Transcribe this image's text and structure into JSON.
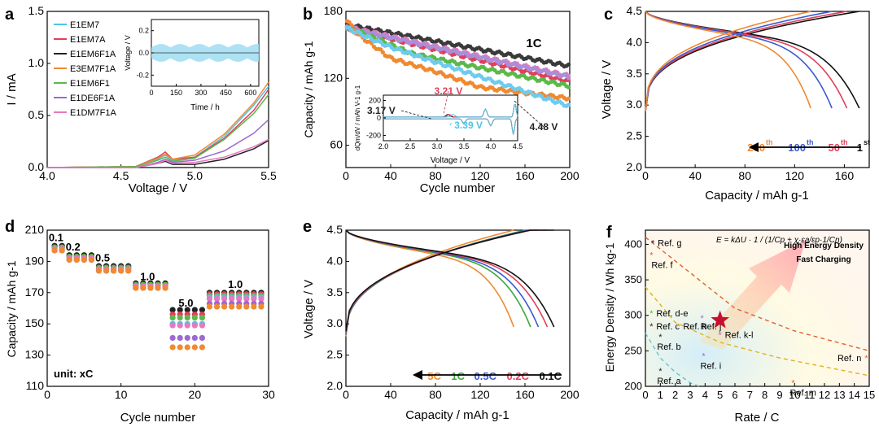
{
  "chart_data": [
    {
      "id": "a",
      "panel_label": "a",
      "type": "line",
      "xlabel": "Voltage / V",
      "ylabel": "I / mA",
      "xlim": [
        4.0,
        5.5
      ],
      "ylim": [
        0.0,
        1.5
      ],
      "xticks": [
        "4.0",
        "4.5",
        "5.0",
        "5.5"
      ],
      "xtick_values": [
        4.0,
        4.5,
        5.0,
        5.5
      ],
      "yticks": [
        "0.0",
        "0.5",
        "1.0",
        "1.5"
      ],
      "ytick_values": [
        0.0,
        0.5,
        1.0,
        1.5
      ],
      "legend": [
        {
          "label": "E1EM7",
          "color": "#4fc3e8"
        },
        {
          "label": "E1EM7A",
          "color": "#e0405a"
        },
        {
          "label": "E1EM6F1A",
          "color": "#222222"
        },
        {
          "label": "E3EM7F1A",
          "color": "#f08a30"
        },
        {
          "label": "E1EM6F1",
          "color": "#5cb84a"
        },
        {
          "label": "E1DE6F1A",
          "color": "#9b6ad0"
        },
        {
          "label": "E1DM7F1A",
          "color": "#e878c0"
        }
      ],
      "series": [
        {
          "name": "E1EM7",
          "color": "#4fc3e8",
          "x": [
            4.0,
            4.6,
            4.75,
            4.8,
            4.85,
            5.0,
            5.2,
            5.4,
            5.5
          ],
          "y": [
            0.0,
            0.01,
            0.08,
            0.12,
            0.07,
            0.1,
            0.3,
            0.6,
            0.78
          ]
        },
        {
          "name": "E1EM7A",
          "color": "#e0405a",
          "x": [
            4.0,
            4.6,
            4.75,
            4.8,
            4.85,
            5.0,
            5.2,
            5.4,
            5.5
          ],
          "y": [
            0.0,
            0.01,
            0.1,
            0.15,
            0.08,
            0.1,
            0.28,
            0.55,
            0.75
          ]
        },
        {
          "name": "E1EM6F1A",
          "color": "#222222",
          "x": [
            4.0,
            4.6,
            4.75,
            4.8,
            4.85,
            5.0,
            5.2,
            5.4,
            5.5
          ],
          "y": [
            0.0,
            0.0,
            0.04,
            0.06,
            0.03,
            0.03,
            0.08,
            0.18,
            0.26
          ]
        },
        {
          "name": "E3EM7F1A",
          "color": "#f08a30",
          "x": [
            4.0,
            4.6,
            4.75,
            4.8,
            4.85,
            5.0,
            5.2,
            5.4,
            5.5
          ],
          "y": [
            0.0,
            0.01,
            0.09,
            0.13,
            0.08,
            0.12,
            0.32,
            0.62,
            0.82
          ]
        },
        {
          "name": "E1EM6F1",
          "color": "#5cb84a",
          "x": [
            4.0,
            4.6,
            4.75,
            4.8,
            4.85,
            5.0,
            5.2,
            5.4,
            5.5
          ],
          "y": [
            0.0,
            0.01,
            0.07,
            0.1,
            0.06,
            0.09,
            0.27,
            0.52,
            0.7
          ]
        },
        {
          "name": "E1DE6F1A",
          "color": "#9b6ad0",
          "x": [
            4.0,
            4.6,
            4.75,
            4.8,
            4.85,
            5.0,
            5.2,
            5.4,
            5.5
          ],
          "y": [
            0.0,
            0.0,
            0.05,
            0.08,
            0.05,
            0.07,
            0.16,
            0.33,
            0.46
          ]
        },
        {
          "name": "E1DM7F1A",
          "color": "#e878c0",
          "x": [
            4.0,
            4.6,
            4.75,
            4.8,
            4.85,
            5.0,
            5.2,
            5.4,
            5.5
          ],
          "y": [
            0.0,
            0.0,
            0.04,
            0.07,
            0.04,
            0.05,
            0.1,
            0.2,
            0.27
          ]
        }
      ],
      "inset": {
        "xlabel": "Time / h",
        "ylabel": "Voltage / V",
        "xlim": [
          0,
          650
        ],
        "ylim": [
          -0.3,
          0.3
        ],
        "xticks": [
          "0",
          "150",
          "300",
          "450",
          "600"
        ],
        "xtick_values": [
          0,
          150,
          300,
          450,
          600
        ],
        "yticks": [
          "-0.2",
          "0.0",
          "0.2"
        ],
        "ytick_values": [
          -0.2,
          0.0,
          0.2
        ],
        "band_amplitude": 0.08
      }
    },
    {
      "id": "b",
      "panel_label": "b",
      "type": "scatter",
      "xlabel": "Cycle number",
      "ylabel": "Capacity / mAh g-1",
      "xlim": [
        0,
        200
      ],
      "ylim": [
        40,
        180
      ],
      "xticks": [
        "0",
        "40",
        "80",
        "120",
        "160",
        "200"
      ],
      "xtick_values": [
        0,
        40,
        80,
        120,
        160,
        200
      ],
      "yticks": [
        "60",
        "120",
        "180"
      ],
      "ytick_values": [
        60,
        120,
        180
      ],
      "annotation": "1C",
      "series": [
        {
          "name": "E1EM6F1A",
          "color": "#3a3a3a",
          "x": [
            1,
            200
          ],
          "y": [
            168,
            131
          ]
        },
        {
          "name": "E1EM7A",
          "color": "#e0405a",
          "x": [
            1,
            200
          ],
          "y": [
            165,
            117
          ]
        },
        {
          "name": "E1DM7F1A",
          "color": "#e878c0",
          "x": [
            1,
            200
          ],
          "y": [
            166,
            122
          ]
        },
        {
          "name": "E1DE6F1A",
          "color": "#a98ed8",
          "x": [
            1,
            200
          ],
          "y": [
            165,
            121
          ]
        },
        {
          "name": "E1EM6F1",
          "color": "#5cb84a",
          "x": [
            1,
            60,
            200
          ],
          "y": [
            166,
            142,
            113
          ]
        },
        {
          "name": "E3EM7F1A",
          "color": "#f08a30",
          "x": [
            1,
            10,
            40,
            80,
            120,
            200
          ],
          "y": [
            172,
            160,
            138,
            126,
            112,
            102
          ]
        },
        {
          "name": "E1EM7",
          "color": "#6fcbee",
          "x": [
            1,
            40,
            100,
            200
          ],
          "y": [
            165,
            148,
            128,
            95
          ]
        }
      ],
      "inset": {
        "xlabel": "Voltage / V",
        "ylabel": "dQm/dV / mAh V-1 g-1",
        "xlim": [
          2.0,
          4.5
        ],
        "ylim": [
          -260,
          260
        ],
        "xticks": [
          "2.0",
          "2.5",
          "3.0",
          "3.5",
          "4.0",
          "4.5"
        ],
        "xtick_values": [
          2.0,
          2.5,
          3.0,
          3.5,
          4.0,
          4.5
        ],
        "yticks": [
          "-200",
          "0",
          "200"
        ],
        "ytick_values": [
          -200,
          0,
          200
        ],
        "peaks": [
          {
            "label": "3.21 V",
            "color": "#e0405a"
          },
          {
            "label": "3.17 V",
            "color": "#222222"
          },
          {
            "label": "3.39 V",
            "color": "#4fc3e8"
          },
          {
            "label": "4.48 V",
            "color": "#222222"
          }
        ]
      }
    },
    {
      "id": "c",
      "panel_label": "c",
      "type": "line",
      "xlabel": "Capacity / mAh g-1",
      "ylabel": "Voltage / V",
      "xlim": [
        0,
        180
      ],
      "ylim": [
        2.0,
        4.5
      ],
      "xticks": [
        "0",
        "40",
        "80",
        "120",
        "160"
      ],
      "xtick_values": [
        0,
        40,
        80,
        120,
        160
      ],
      "yticks": [
        "2.0",
        "2.5",
        "3.0",
        "3.5",
        "4.0",
        "4.5"
      ],
      "ytick_values": [
        2.0,
        2.5,
        3.0,
        3.5,
        4.0,
        4.5
      ],
      "series": [
        {
          "name": "1st",
          "color": "#111111",
          "cap": 172
        },
        {
          "name": "50th",
          "color": "#e0405a",
          "cap": 162
        },
        {
          "name": "100th",
          "color": "#3a5bd0",
          "cap": 150
        },
        {
          "name": "200th",
          "color": "#f08a30",
          "cap": 133
        }
      ],
      "cycle_labels": [
        {
          "n": "200",
          "suffix": "th",
          "color": "#f08a30"
        },
        {
          "n": "100",
          "suffix": "th",
          "color": "#3a5bd0"
        },
        {
          "n": "50",
          "suffix": "th",
          "color": "#e0405a"
        },
        {
          "n": "1",
          "suffix": "st",
          "color": "#111111"
        }
      ]
    },
    {
      "id": "d",
      "panel_label": "d",
      "type": "scatter",
      "xlabel": "Cycle number",
      "ylabel": "Capacity / mAh g-1",
      "xlim": [
        0,
        30
      ],
      "ylim": [
        110,
        210
      ],
      "xticks": [
        "0",
        "10",
        "20",
        "30"
      ],
      "xtick_values": [
        0,
        10,
        20,
        30
      ],
      "yticks": [
        "110",
        "130",
        "150",
        "170",
        "190",
        "210"
      ],
      "ytick_values": [
        110,
        130,
        150,
        170,
        190,
        210
      ],
      "unit_note": "unit: xC",
      "rate_labels": [
        "0.1",
        "0.2",
        "0.5",
        "1.0",
        "5.0",
        "1.0"
      ],
      "segments": [
        {
          "cycles": [
            1,
            2
          ],
          "values": [
            200,
            199,
            199,
            198,
            198,
            197,
            197
          ]
        },
        {
          "cycles": [
            3,
            4,
            5,
            6
          ],
          "values": [
            194,
            193,
            193,
            192,
            192,
            191,
            191
          ]
        },
        {
          "cycles": [
            7,
            8,
            9,
            10,
            11
          ],
          "values": [
            187,
            186,
            186,
            185,
            185,
            184,
            184
          ]
        },
        {
          "cycles": [
            12,
            13,
            14,
            15,
            16
          ],
          "values": [
            176,
            175,
            175,
            174,
            174,
            173,
            173
          ]
        },
        {
          "cycles": [
            17,
            18,
            19,
            20,
            21
          ],
          "values": [
            159,
            156,
            154,
            150,
            149,
            141,
            135
          ]
        },
        {
          "cycles": [
            22,
            23,
            24,
            25,
            26,
            27,
            28,
            29
          ],
          "values": [
            170,
            169,
            168,
            167,
            166,
            163,
            161
          ]
        }
      ],
      "series_colors": [
        "#222222",
        "#e0405a",
        "#5cb84a",
        "#4fc3e8",
        "#e878c0",
        "#9b6ad0",
        "#f08a30"
      ]
    },
    {
      "id": "e",
      "panel_label": "e",
      "type": "line",
      "xlabel": "Capacity / mAh g-1",
      "ylabel": "Voltage / V",
      "xlim": [
        0,
        200
      ],
      "ylim": [
        2.0,
        4.5
      ],
      "xticks": [
        "0",
        "40",
        "80",
        "120",
        "160",
        "200"
      ],
      "xtick_values": [
        0,
        40,
        80,
        120,
        160,
        200
      ],
      "yticks": [
        "2.0",
        "2.5",
        "3.0",
        "3.5",
        "4.0",
        "4.5"
      ],
      "ytick_values": [
        2.0,
        2.5,
        3.0,
        3.5,
        4.0,
        4.5
      ],
      "series": [
        {
          "name": "5C",
          "color": "#f08a30",
          "cap": 150
        },
        {
          "name": "1C",
          "color": "#3aa83a",
          "cap": 165
        },
        {
          "name": "0.5C",
          "color": "#3a5bd0",
          "cap": 172
        },
        {
          "name": "0.2C",
          "color": "#e0405a",
          "cap": 180
        },
        {
          "name": "0.1C",
          "color": "#111111",
          "cap": 186
        }
      ]
    },
    {
      "id": "f",
      "panel_label": "f",
      "type": "scatter",
      "xlabel": "Rate / C",
      "ylabel": "Energy Density / Wh kg-1",
      "xlim": [
        0,
        15
      ],
      "ylim": [
        200,
        420
      ],
      "xticks": [
        "0",
        "1",
        "2",
        "3",
        "4",
        "5",
        "6",
        "7",
        "8",
        "9",
        "10",
        "11",
        "12",
        "13",
        "14",
        "15"
      ],
      "xtick_values": [
        0,
        1,
        2,
        3,
        4,
        5,
        6,
        7,
        8,
        9,
        10,
        11,
        12,
        13,
        14,
        15
      ],
      "yticks": [
        "200",
        "250",
        "300",
        "350",
        "400"
      ],
      "ytick_values": [
        200,
        250,
        300,
        350,
        400
      ],
      "equation": "E = kΔU · 1 / (1/Cp + χ·εa/εp·1/Cn)",
      "headline": [
        "High Energy Density",
        "Fast Charging"
      ],
      "points": [
        {
          "label": "Ref. g",
          "x": 0.5,
          "y": 402,
          "color": "#222222"
        },
        {
          "label": "Ref. f",
          "x": 0.4,
          "y": 385,
          "color": "#e06030"
        },
        {
          "label": "Ref. d-e",
          "x": 0.4,
          "y": 303,
          "color": "#5cb84a"
        },
        {
          "label": "Ref. c",
          "x": 0.4,
          "y": 285,
          "color": "#222222"
        },
        {
          "label": "Ref. h",
          "x": 2.2,
          "y": 285,
          "color": "#e0a020"
        },
        {
          "label": "Ref. b",
          "x": 1.0,
          "y": 270,
          "color": "#222222"
        },
        {
          "label": "Ref. a",
          "x": 1.0,
          "y": 222,
          "color": "#222222"
        },
        {
          "label": "Ref. j",
          "x": 3.8,
          "y": 296,
          "color": "#9b6ad0"
        },
        {
          "label": "Ref. k-l",
          "x": 5.0,
          "y": 273,
          "color": "#9b6ad0"
        },
        {
          "label": "Ref. i",
          "x": 3.9,
          "y": 243,
          "color": "#9b6ad0"
        },
        {
          "label": "Ref. n",
          "x": 14.8,
          "y": 240,
          "color": "#e06030"
        },
        {
          "label": "Ref. m",
          "x": 9.9,
          "y": 205,
          "color": "#e06030"
        }
      ],
      "star": {
        "x": 5.0,
        "y": 293,
        "color": "#c8102e"
      },
      "guides": [
        {
          "color": "#e06030",
          "pts": [
            [
              0,
              410
            ],
            [
              3,
              360
            ],
            [
              6,
              310
            ],
            [
              10,
              278
            ],
            [
              15,
              250
            ]
          ]
        },
        {
          "color": "#e0b020",
          "pts": [
            [
              0,
              340
            ],
            [
              2,
              290
            ],
            [
              5,
              262
            ],
            [
              9,
              240
            ],
            [
              15,
              215
            ]
          ]
        },
        {
          "color": "#6fc0d0",
          "pts": [
            [
              0,
              275
            ],
            [
              1,
              240
            ],
            [
              2,
              220
            ],
            [
              3,
              205
            ],
            [
              3.6,
              200
            ]
          ]
        }
      ]
    }
  ]
}
